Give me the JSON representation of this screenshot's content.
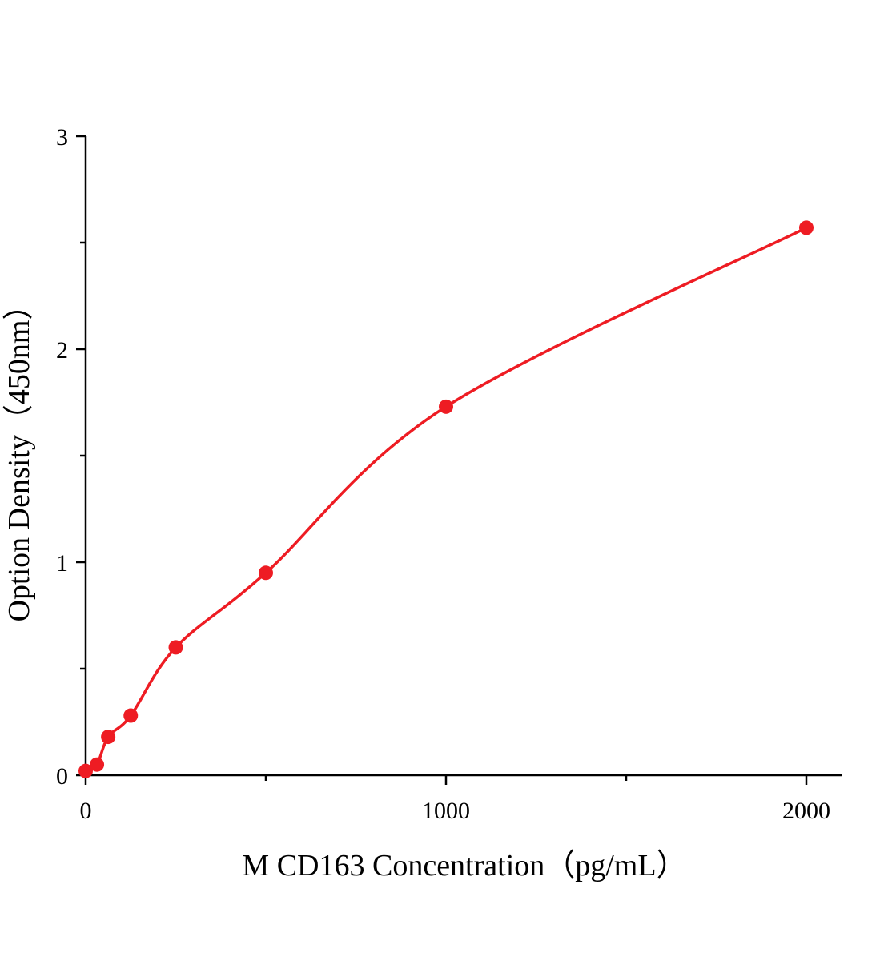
{
  "page": {
    "background_color": "#ffffff",
    "description": "ELISA standard curve plot"
  },
  "chart_data": {
    "type": "scatter",
    "title": "",
    "xlabel": "M CD163 Concentration（pg/mL）",
    "ylabel": "Option Density（450nm）",
    "xlim": [
      0,
      2100
    ],
    "ylim": [
      0,
      3
    ],
    "xticks": {
      "major": [
        0,
        1000,
        2000
      ],
      "minor": [
        500,
        1500
      ]
    },
    "yticks": {
      "major": [
        0,
        1,
        2,
        3
      ],
      "minor": [
        0.5,
        1.5,
        2.5
      ]
    },
    "xtick_labels": [
      "0",
      "1000",
      "2000"
    ],
    "ytick_labels": [
      "0",
      "1",
      "2",
      "3"
    ],
    "grid": false,
    "legend": "none",
    "axis_color": "#000000",
    "series": [
      {
        "name": "M CD163 standard curve",
        "marker": "circle",
        "marker_color": "#ee1c23",
        "line_color": "#ee1c23",
        "fit": "smooth",
        "x": [
          0,
          31.25,
          62.5,
          125,
          250,
          500,
          1000,
          2000
        ],
        "y": [
          0.02,
          0.05,
          0.18,
          0.28,
          0.6,
          0.95,
          1.73,
          2.57
        ]
      }
    ]
  }
}
